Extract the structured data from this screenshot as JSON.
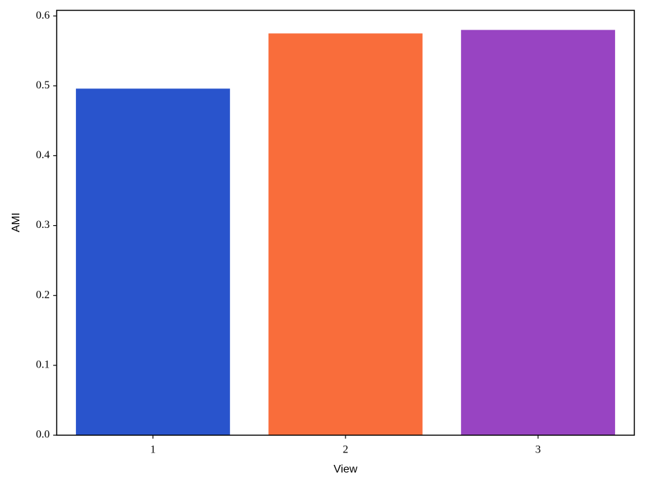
{
  "chart_data": {
    "type": "bar",
    "x_label": "View",
    "y_label": "AMI",
    "categories": [
      "1",
      "2",
      "3"
    ],
    "values": [
      0.496,
      0.575,
      0.58
    ],
    "colors": [
      "#2954cc",
      "#f96d3b",
      "#9844c2"
    ],
    "ylim": [
      0,
      0.608
    ],
    "yticks": [
      {
        "value": 0,
        "label": "0.0"
      },
      0.1,
      0.2,
      0.3,
      0.4,
      0.5,
      0.6
    ],
    "grid": false
  }
}
